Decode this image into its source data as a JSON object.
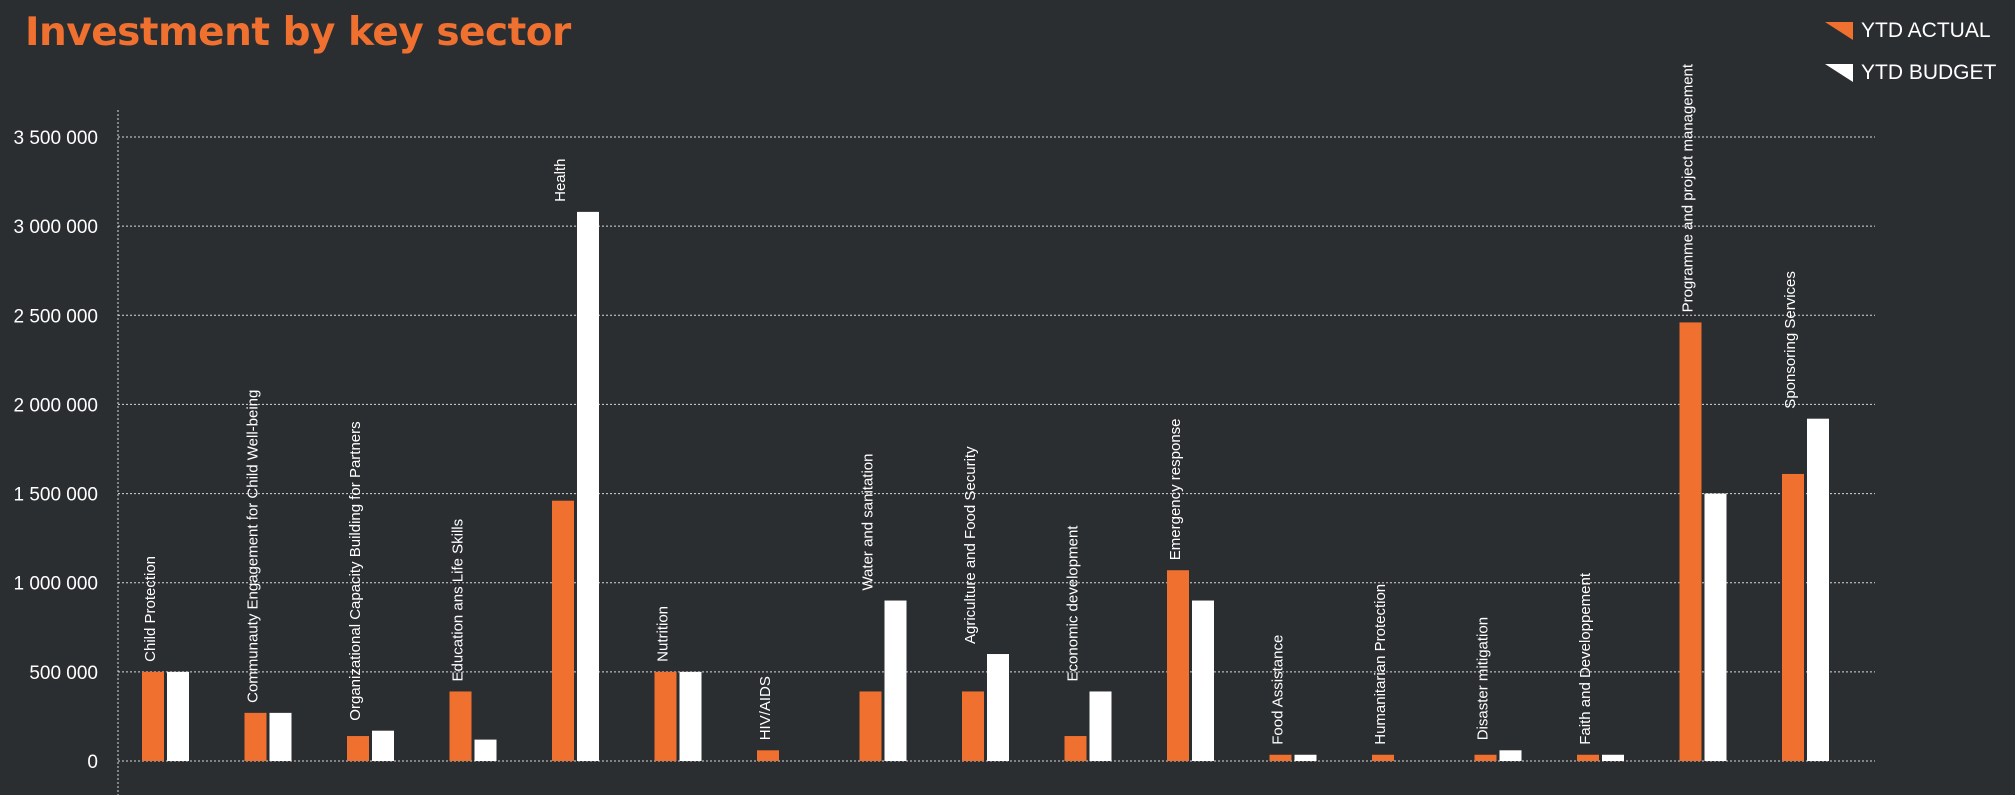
{
  "title": "Investment by key sector",
  "colors": {
    "background": "#2b2e31",
    "actual": "#f07030",
    "budget": "#ffffff",
    "title": "#f07030"
  },
  "legend": {
    "actual_label": "YTD ACTUAL",
    "budget_label": "YTD BUDGET"
  },
  "chart_data": {
    "type": "bar",
    "title": "Investment by key sector",
    "xlabel": "",
    "ylabel": "",
    "ylim": [
      0,
      3500000
    ],
    "yticks": [
      0,
      500000,
      1000000,
      1500000,
      2000000,
      2500000,
      3000000,
      3500000
    ],
    "ytick_labels": [
      "0",
      "500 000",
      "1 000 000",
      "1 500 000",
      "2 000 000",
      "2 500 000",
      "3 000 000",
      "3 500 000"
    ],
    "grid": true,
    "legend_position": "top-right",
    "categories": [
      "Child Protection",
      "Communauty Engagement for Child Well-being",
      "Organizational Capacity Building for Partners",
      "Education ans Life Skills",
      "Health",
      "Nutrition",
      "HIV/AIDS",
      "Water and sanitation",
      "Agriculture and Food Security",
      "Economic development",
      "Emergency response",
      "Food Assistance",
      "Humanitarian Protection",
      "Disaster mitigation",
      "Faith and Developpement",
      "Programme and project management",
      "Sponsoring Services"
    ],
    "series": [
      {
        "name": "YTD ACTUAL",
        "values": [
          500000,
          270000,
          140000,
          390000,
          1460000,
          500000,
          60000,
          390000,
          390000,
          140000,
          1070000,
          35000,
          35000,
          35000,
          35000,
          2460000,
          1610000
        ]
      },
      {
        "name": "YTD BUDGET",
        "values": [
          500000,
          270000,
          170000,
          120000,
          3080000,
          500000,
          0,
          900000,
          600000,
          390000,
          900000,
          35000,
          0,
          60000,
          35000,
          1500000,
          1920000
        ]
      }
    ]
  }
}
